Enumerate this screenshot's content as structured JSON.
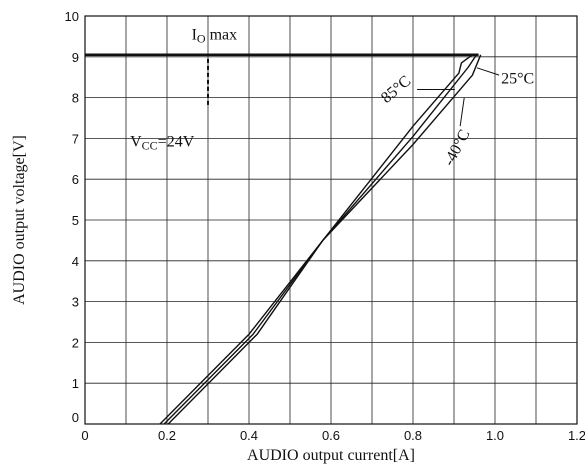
{
  "chart_data": {
    "type": "line",
    "title": "",
    "xlabel": "AUDIO output current[A]",
    "ylabel": "AUDIO output voltage[V]",
    "xlim": [
      0,
      1.2
    ],
    "ylim": [
      0,
      10
    ],
    "x_ticks": [
      0,
      0.2,
      0.4,
      0.6,
      0.8,
      1.0,
      1.2
    ],
    "x_tick_labels": [
      "0",
      "0.2",
      "0.4",
      "0.6",
      "0.8",
      "1.0",
      "1.2"
    ],
    "y_ticks": [
      0,
      1,
      2,
      3,
      4,
      5,
      6,
      7,
      8,
      9,
      10
    ],
    "y_tick_labels": [
      "0",
      "1",
      "2",
      "3",
      "4",
      "5",
      "6",
      "7",
      "8",
      "9",
      "10"
    ],
    "x_minor_step": 0.1,
    "grid": true,
    "series": [
      {
        "name": "85°C",
        "x": [
          0.183,
          0.4,
          0.58,
          0.8,
          0.912,
          0.918,
          0.945
        ],
        "y": [
          0,
          2.2,
          4.5,
          7.3,
          8.6,
          8.85,
          9.05
        ]
      },
      {
        "name": "25°C",
        "x": [
          0.193,
          0.41,
          0.58,
          0.8,
          0.935,
          0.955
        ],
        "y": [
          0,
          2.2,
          4.5,
          7.05,
          8.75,
          9.05
        ]
      },
      {
        "name": "-40°C",
        "x": [
          0.203,
          0.42,
          0.58,
          0.8,
          0.945,
          0.965
        ],
        "y": [
          0,
          2.2,
          4.5,
          6.85,
          8.55,
          9.05
        ]
      }
    ],
    "limit_line": {
      "x": [
        0,
        0.96
      ],
      "y": [
        9.05,
        9.05
      ]
    },
    "annotations": {
      "io_max": {
        "main": "I",
        "sub": "O",
        "suffix": " max"
      },
      "vcc": {
        "main": "V",
        "sub": "CC",
        "suffix": "=24V"
      },
      "label_25": "25°C",
      "label_85": "85°C",
      "label_m40": "-40°C"
    }
  }
}
